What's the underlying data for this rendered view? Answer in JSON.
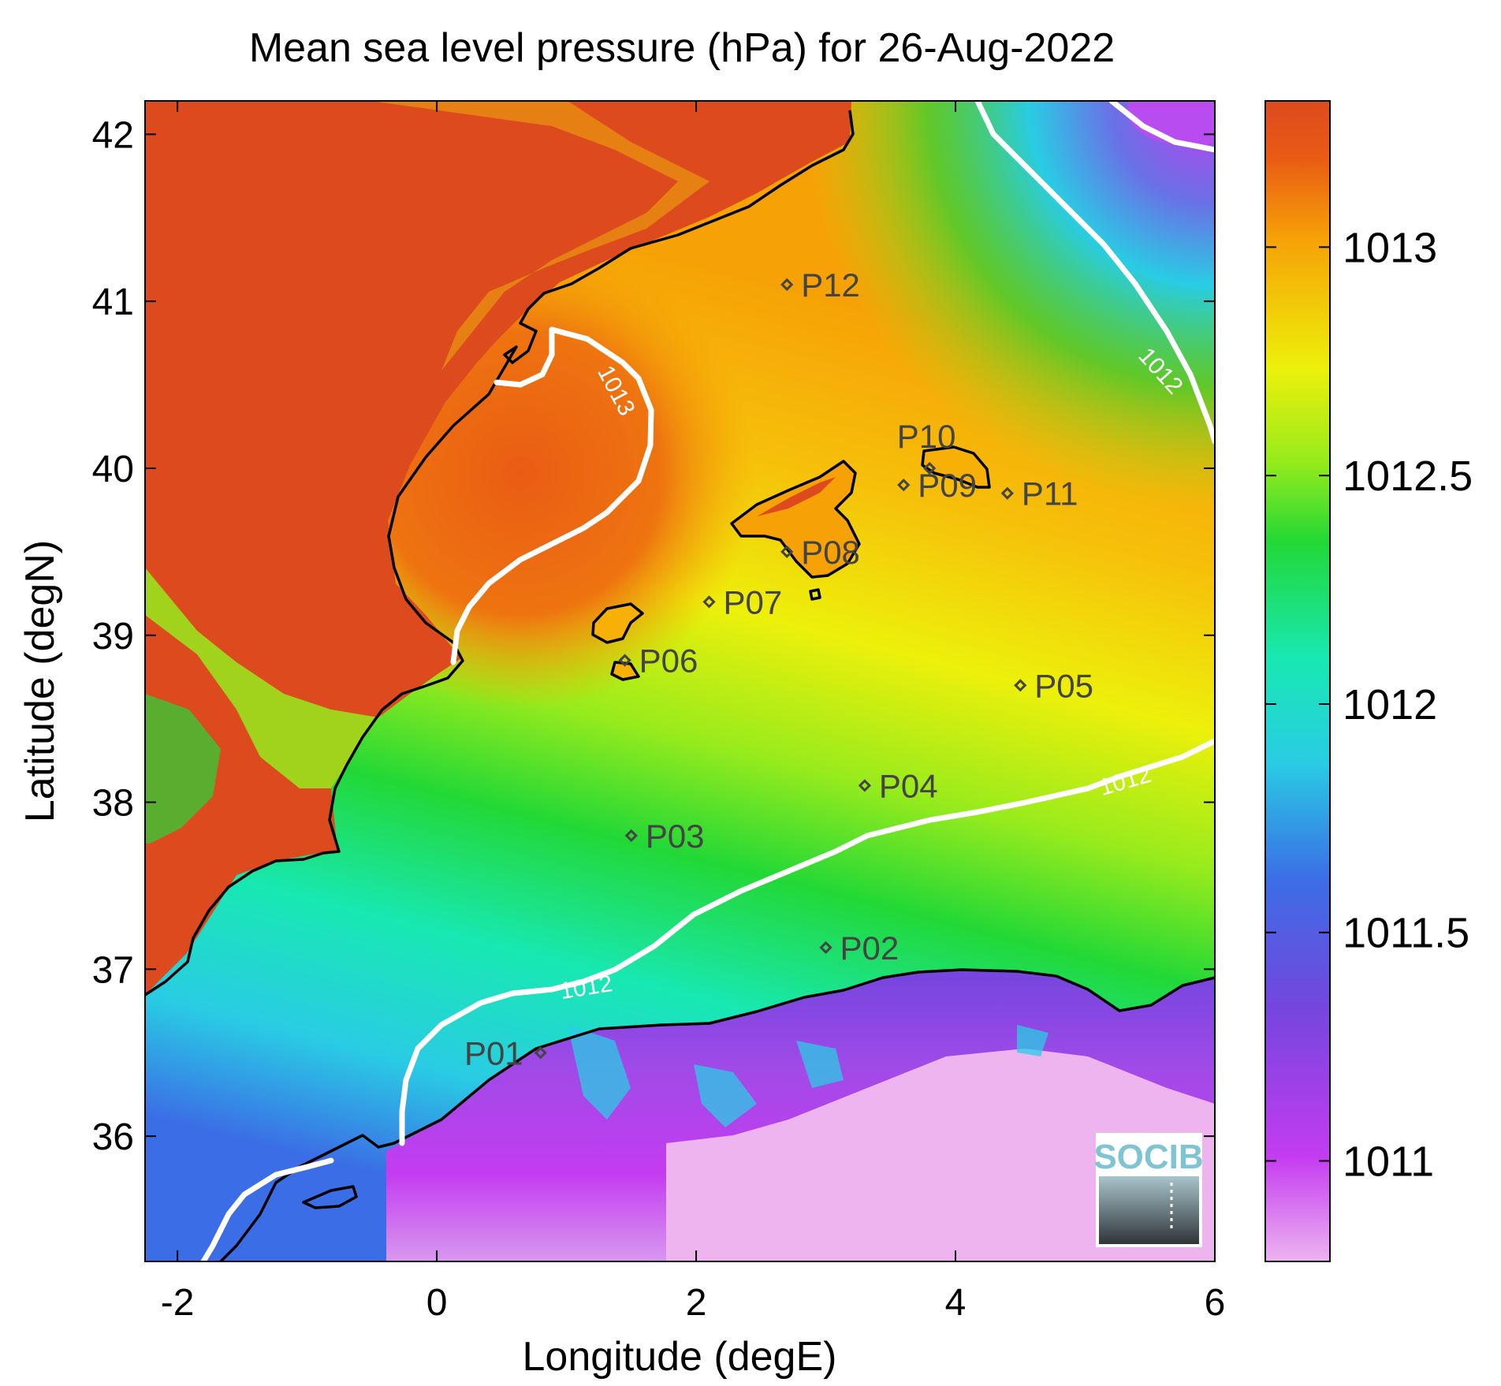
{
  "title": "Mean sea level pressure (hPa) for 26-Aug-2022",
  "xlabel": "Longitude (degE)",
  "ylabel": "Latitude (degN)",
  "x_ticks": [
    "-2",
    "0",
    "2",
    "4",
    "6"
  ],
  "y_ticks": [
    "36",
    "37",
    "38",
    "39",
    "40",
    "41",
    "42"
  ],
  "colorbar": {
    "ticks": [
      "1011",
      "1011.5",
      "1012",
      "1012.5",
      "1013"
    ],
    "range": [
      1010.78,
      1013.32
    ]
  },
  "contours": [
    {
      "label": "1013"
    },
    {
      "label": "1012"
    },
    {
      "label": "1012"
    },
    {
      "label": "1012"
    }
  ],
  "stations": [
    {
      "id": "P01",
      "lon": 0.8,
      "lat": 36.5
    },
    {
      "id": "P02",
      "lon": 3.0,
      "lat": 37.13
    },
    {
      "id": "P03",
      "lon": 1.5,
      "lat": 37.8
    },
    {
      "id": "P04",
      "lon": 3.3,
      "lat": 38.1
    },
    {
      "id": "P05",
      "lon": 4.5,
      "lat": 38.7
    },
    {
      "id": "P06",
      "lon": 1.45,
      "lat": 38.85
    },
    {
      "id": "P07",
      "lon": 2.1,
      "lat": 39.2
    },
    {
      "id": "P08",
      "lon": 2.7,
      "lat": 39.5
    },
    {
      "id": "P09",
      "lon": 3.6,
      "lat": 39.9
    },
    {
      "id": "P10",
      "lon": 3.8,
      "lat": 40.0
    },
    {
      "id": "P11",
      "lon": 4.4,
      "lat": 39.85
    },
    {
      "id": "P12",
      "lon": 2.7,
      "lat": 41.1
    }
  ],
  "logo": "SOCIB",
  "colors": {
    "colormap": [
      "#edb4f0",
      "#c43cf0",
      "#7446de",
      "#3b6ee6",
      "#29cce4",
      "#18e8b2",
      "#22d836",
      "#98eb1c",
      "#edf00a",
      "#f6a206",
      "#ea5c14",
      "#dc4a1e"
    ],
    "coastline": "#000000",
    "contour": "#ffffff",
    "station": "#444444"
  }
}
